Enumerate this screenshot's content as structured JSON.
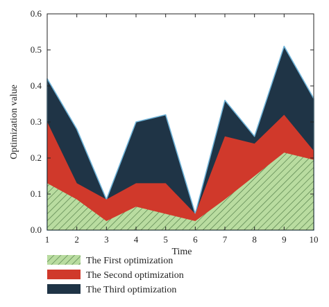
{
  "chart_data": {
    "type": "area",
    "xlabel": "Time",
    "ylabel": "Optimization value",
    "x": [
      1,
      2,
      3,
      4,
      5,
      6,
      7,
      8,
      9,
      10
    ],
    "xlim": [
      1,
      10
    ],
    "ylim": [
      0,
      0.6
    ],
    "xticks": [
      "1",
      "2",
      "3",
      "4",
      "5",
      "6",
      "7",
      "8",
      "9",
      "10"
    ],
    "yticks": [
      "0.0",
      "0.1",
      "0.2",
      "0.3",
      "0.4",
      "0.5",
      "0.6"
    ],
    "grid": false,
    "legend_position": "bottom-left",
    "series": [
      {
        "name": "The First optimization",
        "values": [
          0.13,
          0.085,
          0.025,
          0.065,
          0.045,
          0.025,
          0.085,
          0.15,
          0.215,
          0.195
        ],
        "color": "#a8d08d",
        "pattern": "diagonal-hatch"
      },
      {
        "name": "The Second optimization",
        "values": [
          0.3,
          0.13,
          0.085,
          0.13,
          0.13,
          0.045,
          0.26,
          0.24,
          0.32,
          0.22
        ],
        "color": "#d0392b"
      },
      {
        "name": "The Third optimization",
        "values": [
          0.42,
          0.28,
          0.085,
          0.3,
          0.32,
          0.045,
          0.36,
          0.26,
          0.51,
          0.365
        ],
        "color": "#1f3446",
        "outline": "#6fb3d8"
      }
    ]
  }
}
